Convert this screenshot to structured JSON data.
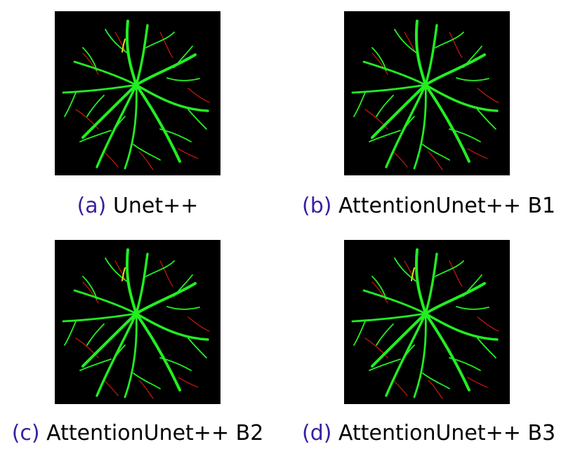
{
  "figures": [
    {
      "letter": "(a)",
      "label": "Unet++"
    },
    {
      "letter": "(b)",
      "label": "AttentionUnet++ B1"
    },
    {
      "letter": "(c)",
      "label": "AttentionUnet++ B2"
    },
    {
      "letter": "(d)",
      "label": "AttentionUnet++ B3"
    }
  ],
  "colors": {
    "vessel_match": "#22ee22",
    "vessel_miss": "#cc1a10",
    "vessel_extra": "#dddd22",
    "background": "#000000",
    "caption_letter": "#3a1fa0"
  }
}
